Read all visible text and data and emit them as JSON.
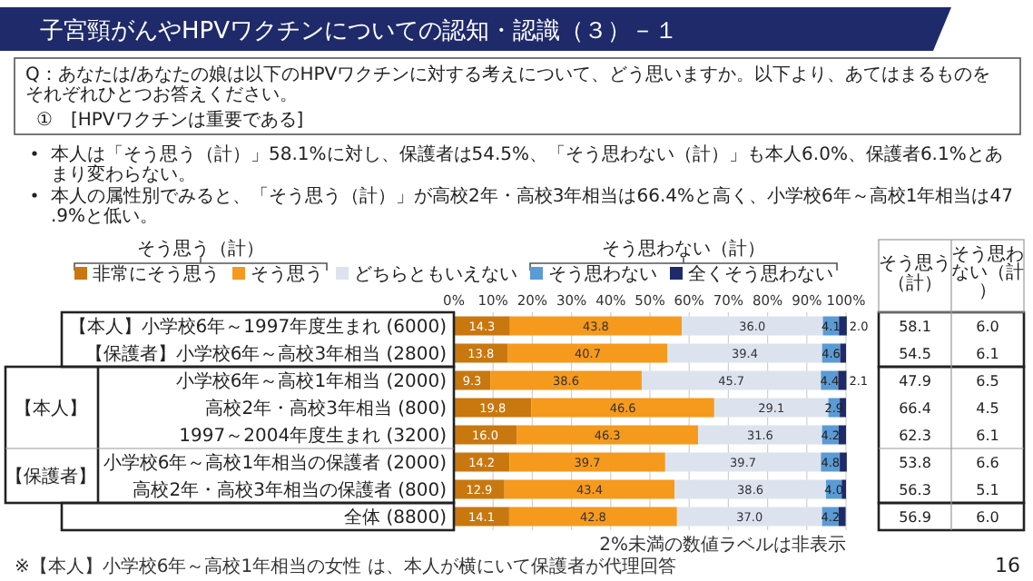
{
  "chart_data": {
    "type": "bar",
    "orientation": "horizontal",
    "stacked": true,
    "title": "子宮頸がんやHPVワクチンについての認知・認識（３）－１",
    "subtitle": "Q：あなたは/あなたの娘は以下のHPVワクチンに対する考えについて、どう思いますか。以下より、あてはまるものをそれぞれひとつお答えください。",
    "categories": [
      "【本人】小学校6年～1997年度生まれ (6000)",
      "【保護者】小学校6年～高校3年相当 (2800)",
      "小学校6年～高校1年相当 (2000)",
      "高校2年・高校3年相当 (800)",
      "1997～2004年度生まれ (3200)",
      "小学校6年～高校1年相当の保護者 (2000)",
      "高校2年・高校3年相当の保護者 (800)",
      "全体 (8800)"
    ],
    "series": [
      {
        "name": "非常にそう思う",
        "color": "#c8780f",
        "values": [
          14.3,
          13.8,
          9.3,
          19.8,
          16.0,
          14.2,
          12.9,
          14.1
        ],
        "value_labels": [
          "14.3",
          "13.8",
          "9.3",
          "19.8",
          "16.0",
          "14.2",
          "12.9",
          "14.1"
        ]
      },
      {
        "name": "そう思う",
        "color": "#f59a1d",
        "values": [
          43.8,
          40.7,
          38.6,
          46.6,
          46.3,
          39.7,
          43.4,
          42.8
        ],
        "value_labels": [
          "43.8",
          "40.7",
          "38.6",
          "46.6",
          "46.3",
          "39.7",
          "43.4",
          "42.8"
        ]
      },
      {
        "name": "どちらともいえない",
        "color": "#dde3ee",
        "values": [
          36.0,
          39.4,
          45.7,
          29.1,
          31.6,
          39.7,
          38.6,
          37.0
        ],
        "value_labels": [
          "36.0",
          "39.4",
          "45.7",
          "29.1",
          "31.6",
          "39.7",
          "38.6",
          "37.0"
        ]
      },
      {
        "name": "そう思わない",
        "color": "#5b9bd5",
        "values": [
          4.1,
          4.6,
          4.4,
          2.9,
          4.2,
          4.8,
          4.0,
          4.2
        ],
        "value_labels": [
          "4.1",
          "4.6",
          "4.4",
          "2.9",
          "4.2",
          "4.8",
          "4.0",
          "4.2"
        ]
      },
      {
        "name": "全くそう思わない",
        "color": "#1f2a6b",
        "values": [
          2.0,
          1.5,
          2.1,
          1.6,
          1.9,
          1.8,
          1.1,
          1.8
        ],
        "value_labels": [
          "2.0",
          null,
          "2.1",
          null,
          null,
          null,
          null,
          null
        ]
      }
    ],
    "xlim": [
      0,
      100
    ],
    "xticks": [
      {
        "value": 0,
        "label": "0%"
      },
      {
        "value": 10,
        "label": "10%"
      },
      {
        "value": 20,
        "label": "20%"
      },
      {
        "value": 30,
        "label": "30%"
      },
      {
        "value": 40,
        "label": "40%"
      },
      {
        "value": 50,
        "label": "50%"
      },
      {
        "value": 60,
        "label": "60%"
      },
      {
        "value": 70,
        "label": "70%"
      },
      {
        "value": 80,
        "label": "80%"
      },
      {
        "value": 90,
        "label": "90%"
      },
      {
        "value": 100,
        "label": "100%"
      }
    ],
    "grid": "x",
    "legend": "top",
    "annotations": [
      "①　[HPVワクチンは重要である]",
      "本人は「そう思う（計）」58.1%に対し、保護者は54.5%、「そう思わない（計）」も本人6.0%、保護者6.1%とあまり変わらない。",
      "本人の属性別でみると、「そう思う（計）」が高校2年・高校3年相当は66.4%と高く、小学校6年～高校1年相当は47.9%と低い。",
      "そう思う（計）",
      "そう思わない（計）",
      "【本人】",
      "【保護者】",
      "そう思う（計）",
      "そう思わない（計）",
      "58.1",
      "54.5",
      "47.9",
      "66.4",
      "62.3",
      "53.8",
      "56.3",
      "56.9",
      "6.0",
      "6.1",
      "6.5",
      "4.5",
      "6.1",
      "6.6",
      "5.1",
      "6.0",
      "※【本人】小学校6年～高校1年相当の女性 は、本人が横にいて保護者が代理回答",
      "2%未満の数値ラベルは非表示",
      "16"
    ]
  }
}
